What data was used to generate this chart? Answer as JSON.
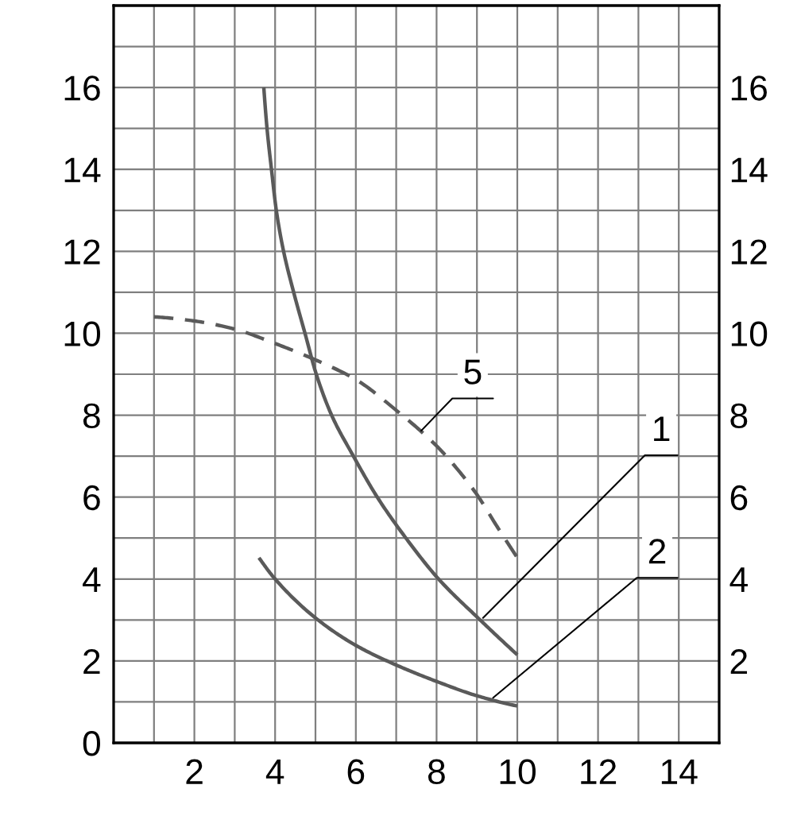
{
  "chart_data": {
    "type": "line",
    "xlim": [
      0,
      15
    ],
    "ylim": [
      0,
      18
    ],
    "xticks": [
      {
        "value": 1,
        "label": null
      },
      2,
      {
        "value": 3,
        "label": null
      },
      4,
      {
        "value": 5,
        "label": null
      },
      6,
      {
        "value": 7,
        "label": null
      },
      8,
      {
        "value": 9,
        "label": null
      },
      10,
      {
        "value": 11,
        "label": null
      },
      12,
      {
        "value": 13,
        "label": null
      },
      14
    ],
    "yticks": [
      0,
      {
        "value": 1,
        "label": null
      },
      2,
      {
        "value": 3,
        "label": null
      },
      4,
      {
        "value": 5,
        "label": null
      },
      6,
      {
        "value": 7,
        "label": null
      },
      8,
      {
        "value": 9,
        "label": null
      },
      10,
      {
        "value": 11,
        "label": null
      },
      12,
      {
        "value": 13,
        "label": null
      },
      14,
      {
        "value": 15,
        "label": null
      },
      16,
      {
        "value": 17,
        "label": null
      }
    ],
    "y2lim": [
      0,
      18
    ],
    "y2ticks": [
      2,
      4,
      6,
      8,
      10,
      12,
      14,
      16
    ],
    "grid": true,
    "series": [
      {
        "color": "#5a5a5a",
        "line_style": "solid",
        "x": [
          3.72,
          3.8,
          3.91,
          4.03,
          4.21,
          4.46,
          4.74,
          5.02,
          5.4,
          5.94,
          6.53,
          7.24,
          8.05,
          9.08,
          10.0
        ],
        "values": [
          16.0,
          15.0,
          14.0,
          13.0,
          12.0,
          11.0,
          10.0,
          9.0,
          8.0,
          7.0,
          6.0,
          5.0,
          4.0,
          3.0,
          2.15
        ]
      },
      {
        "color": "#5a5a5a",
        "line_style": "solid",
        "x": [
          3.6,
          4.0,
          5.0,
          6.0,
          7.0,
          8.0,
          9.0,
          10.0
        ],
        "values": [
          4.52,
          4.0,
          3.05,
          2.38,
          1.9,
          1.5,
          1.15,
          0.9
        ]
      },
      {
        "color": "#5a5a5a",
        "line_style": "dashed",
        "x": [
          1,
          2,
          3,
          4,
          5,
          6,
          7,
          8,
          8.5,
          9,
          9.5,
          10
        ],
        "values": [
          10.4,
          10.3,
          10.1,
          9.75,
          9.35,
          8.87,
          8.12,
          7.25,
          6.7,
          6.06,
          5.28,
          4.52
        ]
      }
    ],
    "annotations": [
      {
        "text": "5",
        "x": 7.62,
        "y": 7.62
      },
      {
        "text": "1",
        "x": 9.15,
        "y": 3.05
      },
      {
        "text": "2",
        "x": 9.4,
        "y": 1.1
      }
    ]
  }
}
